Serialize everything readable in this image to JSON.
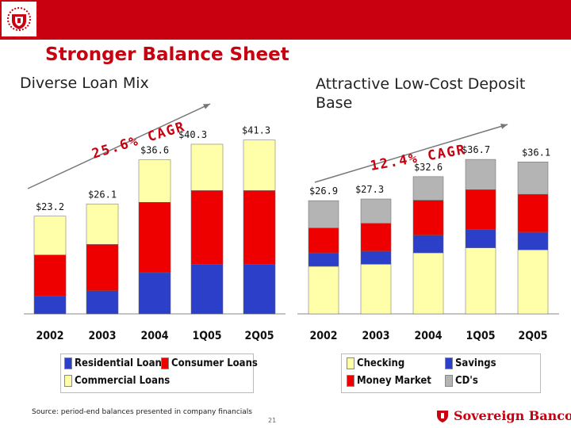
{
  "title": "Stronger Balance Sheet",
  "left_subtitle": "Diverse Loan Mix",
  "right_subtitle": "Attractive Low-Cost Deposit Base",
  "footer": {
    "source": "Source: period-end balances presented in company financials",
    "page_number": "21",
    "brand": "Sovereign Bancorp"
  },
  "colors": {
    "brand_red": "#c8000f",
    "blue": "#2c3fc8",
    "red": "#ee0000",
    "yellow": "#ffffaa",
    "gray": "#b4b4b4"
  },
  "chart_data": [
    {
      "type": "bar",
      "stacked": true,
      "title": "Diverse Loan Mix",
      "categories": [
        "2002",
        "2003",
        "2004",
        "1Q05",
        "2Q05"
      ],
      "totals": [
        "$23.2",
        "$26.1",
        "$36.6",
        "$40.3",
        "$41.3"
      ],
      "total_values": [
        23.2,
        26.1,
        36.6,
        40.3,
        41.3
      ],
      "series": [
        {
          "name": "Residential Loans",
          "color": "#2c3fc8",
          "values": [
            4.2,
            5.5,
            9.8,
            11.8,
            11.8
          ]
        },
        {
          "name": "Consumer Loans",
          "color": "#ee0000",
          "values": [
            9.8,
            11.0,
            16.7,
            17.5,
            17.5
          ]
        },
        {
          "name": "Commercial Loans",
          "color": "#ffffaa",
          "values": [
            9.2,
            9.6,
            10.1,
            11.0,
            12.0
          ]
        }
      ],
      "annotation": "25.6% CAGR",
      "ylim": [
        0,
        45
      ],
      "legend_position": "bottom"
    },
    {
      "type": "bar",
      "stacked": true,
      "title": "Attractive Low-Cost Deposit Base",
      "categories": [
        "2002",
        "2003",
        "2004",
        "1Q05",
        "2Q05"
      ],
      "totals": [
        "$26.9",
        "$27.3",
        "$32.6",
        "$36.7",
        "$36.1"
      ],
      "total_values": [
        26.9,
        27.3,
        32.6,
        36.7,
        36.1
      ],
      "series": [
        {
          "name": "Checking",
          "color": "#ffffaa",
          "values": [
            11.3,
            11.8,
            14.5,
            15.7,
            15.2
          ]
        },
        {
          "name": "Savings",
          "color": "#2c3fc8",
          "values": [
            3.2,
            3.1,
            4.2,
            4.3,
            4.2
          ]
        },
        {
          "name": "Money Market",
          "color": "#ee0000",
          "values": [
            5.9,
            6.6,
            8.3,
            9.5,
            9.0
          ]
        },
        {
          "name": "CD's",
          "color": "#b4b4b4",
          "values": [
            6.5,
            5.8,
            5.6,
            7.2,
            7.7
          ]
        }
      ],
      "annotation": "12.4% CAGR",
      "ylim": [
        0,
        45
      ],
      "legend_position": "bottom"
    }
  ]
}
